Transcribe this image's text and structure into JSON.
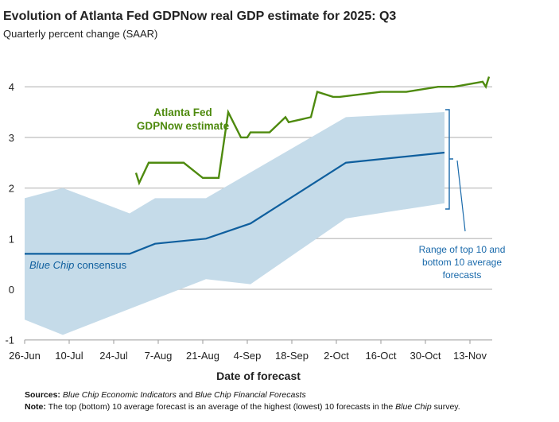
{
  "title": "Evolution of Atlanta Fed GDPNow real GDP estimate for 2025: Q3",
  "subtitle": "Quarterly percent change (SAAR)",
  "footnotes": {
    "sources_label": "Sources:",
    "sources_italic1": "Blue Chip Economic Indicators",
    "sources_and": " and ",
    "sources_italic2": "Blue Chip Financial Forecasts",
    "note_label": "Note:",
    "note_text": " The top (bottom) 10 average forecast is an average of the highest (lowest) 10 forecasts in the ",
    "note_italic": "Blue Chip",
    "note_end": " survey."
  },
  "colors": {
    "gdpnow": "#4e8a0e",
    "consensus": "#0f5f9e",
    "band": "#c5dbe9",
    "grid": "#c8c8c8",
    "annotation": "#1a6aab"
  },
  "chart_data": {
    "type": "line",
    "title": "Evolution of Atlanta Fed GDPNow real GDP estimate for 2025: Q3",
    "xlabel": "Date of forecast",
    "ylabel": "Quarterly percent change (SAAR)",
    "x_unit": "days since 26-Jun",
    "xlim": [
      0,
      147
    ],
    "ylim": [
      -1,
      4.2
    ],
    "yticks": [
      -1,
      0,
      1,
      2,
      3,
      4
    ],
    "xticks": [
      0,
      14,
      28,
      42,
      56,
      70,
      84,
      98,
      112,
      126,
      140
    ],
    "xtick_labels": [
      "26-Jun",
      "10-Jul",
      "24-Jul",
      "7-Aug",
      "21-Aug",
      "4-Sep",
      "18-Sep",
      "2-Oct",
      "16-Oct",
      "30-Oct",
      "13-Nov"
    ],
    "grid": true,
    "series": [
      {
        "name": "Atlanta Fed GDPNow estimate",
        "label_line1": "Atlanta Fed",
        "label_line2": "GDPNow estimate",
        "x": [
          35,
          36,
          39,
          50,
          56,
          61,
          64,
          68,
          70,
          71,
          77,
          82,
          83,
          90,
          92,
          97,
          99,
          112,
          120,
          130,
          135,
          144,
          145,
          146
        ],
        "y": [
          2.3,
          2.1,
          2.5,
          2.5,
          2.2,
          2.2,
          3.5,
          3.0,
          3.0,
          3.1,
          3.1,
          3.4,
          3.3,
          3.4,
          3.9,
          3.8,
          3.8,
          3.9,
          3.9,
          4.0,
          4.0,
          4.1,
          4.0,
          4.2
        ]
      },
      {
        "name": "Blue Chip consensus",
        "label_italic": "Blue Chip",
        "label_rest": " consensus",
        "x": [
          0,
          33,
          41,
          57,
          71,
          101,
          132
        ],
        "y": [
          0.7,
          0.7,
          0.9,
          1.0,
          1.3,
          2.5,
          2.7
        ]
      }
    ],
    "band": {
      "name": "Range of top 10 and bottom 10 average forecasts",
      "label_lines": [
        "Range of top 10 and",
        "bottom 10 average",
        "forecasts"
      ],
      "upper": {
        "x": [
          0,
          12,
          33,
          41,
          57,
          101,
          132
        ],
        "y": [
          1.8,
          2.0,
          1.5,
          1.8,
          1.8,
          3.4,
          3.5
        ]
      },
      "lower": {
        "x": [
          0,
          12,
          57,
          71,
          101,
          132
        ],
        "y": [
          -0.6,
          -0.9,
          0.2,
          0.1,
          1.4,
          1.7
        ]
      }
    }
  }
}
